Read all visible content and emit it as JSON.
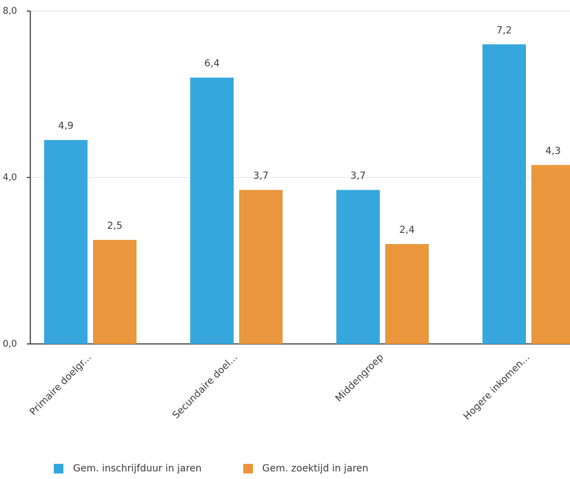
{
  "chart_data": {
    "type": "bar",
    "title": "",
    "xlabel": "",
    "ylabel": "",
    "ylim": [
      0,
      8
    ],
    "yticks": [
      "0,0",
      "4,0",
      "8,0"
    ],
    "grid": true,
    "legend_position": "bottom",
    "categories": [
      "Primaire doelgr...",
      "Secundaire doel...",
      "Middengroep",
      "Hogere inkomen..."
    ],
    "series": [
      {
        "name": "Gem. inschrijfduur in jaren",
        "color": "#36a7dd",
        "values": [
          4.9,
          6.4,
          3.7,
          7.2
        ],
        "labels": [
          "4,9",
          "6,4",
          "3,7",
          "7,2"
        ]
      },
      {
        "name": "Gem. zoektijd in jaren",
        "color": "#ea963c",
        "values": [
          2.5,
          3.7,
          2.4,
          4.3
        ],
        "labels": [
          "2,5",
          "3,7",
          "2,4",
          "4,3"
        ]
      }
    ]
  }
}
